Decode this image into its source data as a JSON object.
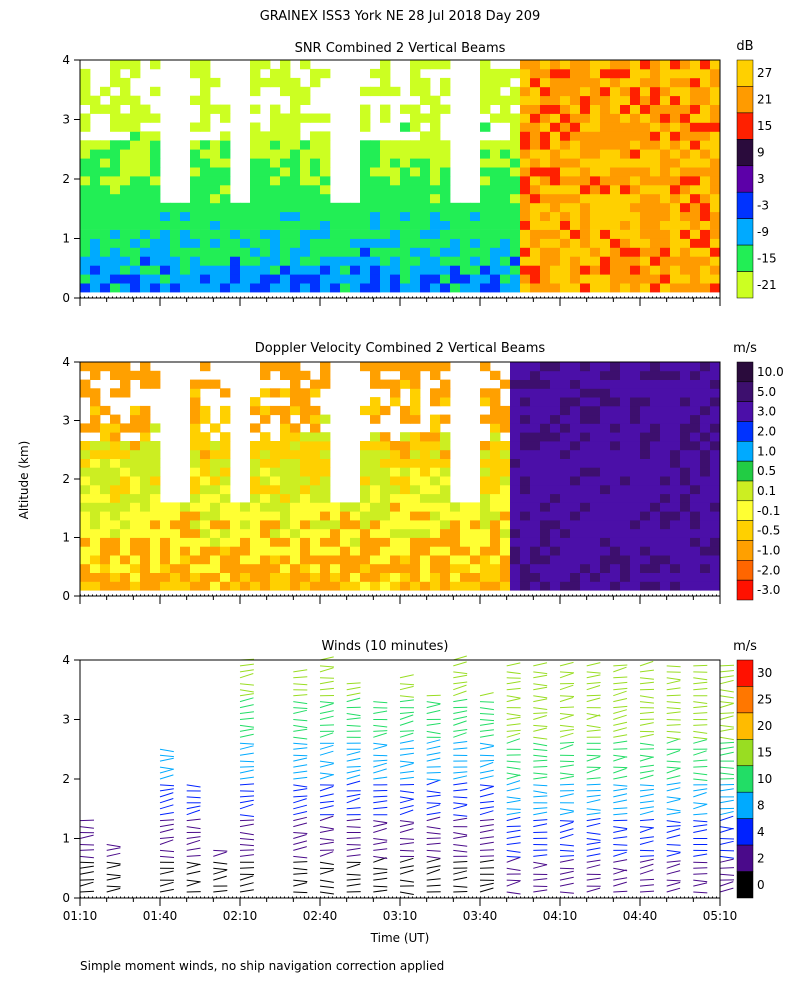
{
  "page": {
    "title": "GRAINEX ISS3 York NE  28 Jul 2018 Day 209",
    "ylabel": "Altitude (km)",
    "xlabel": "Time (UT)",
    "footnote": "Simple moment winds, no ship navigation correction applied"
  },
  "shared_axes": {
    "x_ticks": [
      "01:10",
      "01:40",
      "02:10",
      "02:40",
      "03:10",
      "03:40",
      "04:10",
      "04:40",
      "05:10"
    ],
    "y_ticks": [
      "0",
      "1",
      "2",
      "3",
      "4"
    ],
    "y_range_km": [
      0,
      4
    ]
  },
  "chart_data": [
    {
      "type": "heatmap",
      "title": "SNR Combined 2 Vertical Beams",
      "colorbar_unit": "dB",
      "colorbar_labels": [
        "27",
        "21",
        "15",
        "9",
        "3",
        "-3",
        "-9",
        "-15",
        "-21"
      ],
      "colorbar_colors": [
        "#ffd000",
        "#ff9b00",
        "#ff2000",
        "#2a0b3c",
        "#5c00a8",
        "#0033ff",
        "#00aaff",
        "#22ee55",
        "#ccff22"
      ],
      "x_range": [
        "01:10",
        "05:10"
      ],
      "y_range_km": [
        0,
        4
      ],
      "summary_regions": [
        {
          "x_start": "01:10",
          "x_end": "04:10",
          "alt_low": 0.1,
          "alt_high": 4.0,
          "value_db": "-21 to 3"
        },
        {
          "x_start": "04:10",
          "x_end": "05:10",
          "alt_low": 0.1,
          "alt_high": 4.0,
          "value_db": "9 to 27"
        }
      ]
    },
    {
      "type": "heatmap",
      "title": "Doppler Velocity Combined 2 Vertical Beams",
      "colorbar_unit": "m/s",
      "colorbar_labels": [
        "10.0",
        "5.0",
        "3.0",
        "2.0",
        "1.0",
        "0.5",
        "0.1",
        "-0.1",
        "-0.5",
        "-1.0",
        "-2.0",
        "-3.0"
      ],
      "colorbar_colors": [
        "#2a0b3c",
        "#3d0f6e",
        "#4b0fa8",
        "#0033ff",
        "#00aaff",
        "#22cc44",
        "#ccee22",
        "#ffff33",
        "#ffd000",
        "#ffa000",
        "#ff6600",
        "#ff1100"
      ],
      "x_range": [
        "01:10",
        "05:10"
      ],
      "y_range_km": [
        0,
        4
      ],
      "summary_regions": [
        {
          "x_start": "01:10",
          "x_end": "04:05",
          "alt_low": 0.1,
          "alt_high": 4.0,
          "value_ms": "-1.0 to 0.1"
        },
        {
          "x_start": "04:05",
          "x_end": "05:10",
          "alt_low": 0.1,
          "alt_high": 4.0,
          "value_ms": "5.0 to 10.0"
        }
      ]
    },
    {
      "type": "scatter",
      "title": "Winds (10 minutes)",
      "colorbar_unit": "m/s",
      "colorbar_labels": [
        "30",
        "25",
        "20",
        "15",
        "10",
        "8",
        "4",
        "2",
        "0"
      ],
      "colorbar_colors": [
        "#ff1100",
        "#ff7700",
        "#ffbb00",
        "#99dd22",
        "#22dd66",
        "#00aaff",
        "#0022ff",
        "#4a0a8a",
        "#000000"
      ],
      "x_range": [
        "01:10",
        "05:10"
      ],
      "y_range_km": [
        0,
        4
      ],
      "profiles_minutes_after_0110": [
        0,
        10,
        30,
        40,
        50,
        60,
        80,
        90,
        100,
        110,
        120,
        130,
        140,
        150,
        160,
        170,
        180,
        190,
        200,
        210,
        220,
        230,
        240
      ],
      "profile_top_km": [
        1.4,
        0.9,
        2.6,
        2.0,
        0.8,
        4.1,
        3.9,
        4.1,
        3.7,
        3.4,
        3.8,
        3.5,
        4.1,
        3.5,
        4.0,
        4.0,
        4.0,
        4.0,
        4.0,
        4.0,
        4.0,
        4.0,
        4.0
      ]
    }
  ]
}
